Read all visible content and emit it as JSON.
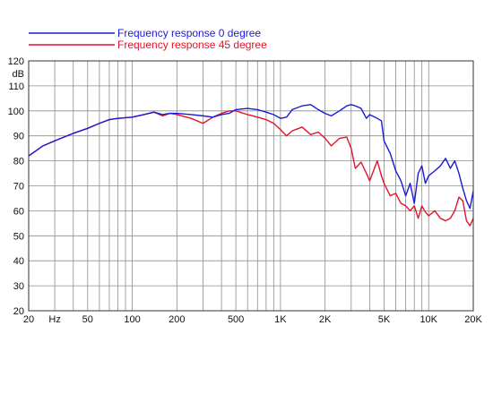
{
  "chart_data": {
    "type": "line",
    "title": "",
    "xlabel": "",
    "ylabel": "dB",
    "x_scale": "log",
    "xlim": [
      20,
      20000
    ],
    "ylim": [
      20,
      120
    ],
    "grid": true,
    "legend_position": "top-left",
    "y_ticks": [
      20,
      30,
      40,
      50,
      60,
      70,
      80,
      90,
      100,
      110,
      120
    ],
    "y_tick_labels": [
      "20",
      "30",
      "40",
      "50",
      "60",
      "70",
      "80",
      "90",
      "100",
      "110",
      "120"
    ],
    "x_ticks": [
      20,
      30,
      50,
      100,
      200,
      500,
      1000,
      2000,
      5000,
      10000,
      20000
    ],
    "x_tick_labels": [
      "20",
      "Hz",
      "50",
      "100",
      "200",
      "500",
      "1K",
      "2K",
      "5K",
      "10K",
      "20K"
    ],
    "x_gridlines": [
      20,
      30,
      40,
      50,
      60,
      70,
      80,
      90,
      100,
      200,
      300,
      400,
      500,
      600,
      700,
      800,
      900,
      1000,
      2000,
      3000,
      4000,
      5000,
      6000,
      7000,
      8000,
      9000,
      10000,
      20000
    ],
    "series": [
      {
        "name": "Frequency response 0 degree",
        "color": "#1a1ad8",
        "x": [
          20,
          25,
          30,
          40,
          50,
          60,
          70,
          80,
          100,
          120,
          140,
          160,
          180,
          200,
          250,
          300,
          350,
          400,
          450,
          500,
          600,
          700,
          800,
          900,
          1000,
          1100,
          1200,
          1400,
          1600,
          1800,
          2000,
          2200,
          2500,
          2800,
          3000,
          3200,
          3500,
          3800,
          4000,
          4500,
          4800,
          5000,
          5500,
          6000,
          6500,
          7000,
          7500,
          8000,
          8500,
          9000,
          9500,
          10000,
          11000,
          12000,
          13000,
          14000,
          15000,
          16000,
          17000,
          18000,
          19000,
          20000
        ],
        "y": [
          82,
          86,
          88,
          91,
          93,
          95,
          96.5,
          97,
          97.5,
          98.5,
          99.5,
          98.5,
          99,
          99,
          98.5,
          98,
          97.5,
          98.5,
          99,
          100.5,
          101,
          100.5,
          99.5,
          98.5,
          97,
          97.5,
          100.5,
          102,
          102.5,
          100.5,
          99,
          98,
          100,
          102,
          102.5,
          102,
          101,
          97,
          98.5,
          97,
          96,
          88,
          83,
          76,
          72,
          66,
          71,
          63,
          75,
          78,
          71,
          74,
          76,
          78,
          81,
          77,
          80,
          75,
          69,
          64,
          61,
          68
        ]
      },
      {
        "name": "Frequency response 45 degree",
        "color": "#e0142a",
        "x": [
          20,
          25,
          30,
          40,
          50,
          60,
          70,
          80,
          100,
          120,
          140,
          160,
          180,
          200,
          250,
          300,
          350,
          400,
          450,
          500,
          600,
          700,
          800,
          900,
          1000,
          1100,
          1200,
          1400,
          1600,
          1800,
          2000,
          2200,
          2500,
          2800,
          3000,
          3200,
          3500,
          3800,
          4000,
          4500,
          4800,
          5000,
          5500,
          6000,
          6500,
          7000,
          7500,
          8000,
          8500,
          9000,
          9500,
          10000,
          11000,
          12000,
          13000,
          14000,
          15000,
          16000,
          17000,
          18000,
          19000,
          20000
        ],
        "y": [
          82,
          86,
          88,
          91,
          93,
          95,
          96.5,
          97,
          97.5,
          98.5,
          99.5,
          98,
          99,
          98.5,
          97,
          95,
          97.5,
          99,
          100,
          100,
          98.5,
          97.5,
          96.5,
          95,
          92.5,
          90,
          92,
          93.5,
          90.5,
          91.5,
          89,
          86,
          89,
          89.5,
          85,
          77,
          79.5,
          75,
          72,
          80,
          74,
          71,
          66,
          67,
          63,
          62,
          60,
          62,
          57,
          62,
          59.5,
          58,
          60,
          57,
          56,
          57,
          60,
          65.5,
          64,
          56,
          54,
          57
        ]
      }
    ]
  }
}
